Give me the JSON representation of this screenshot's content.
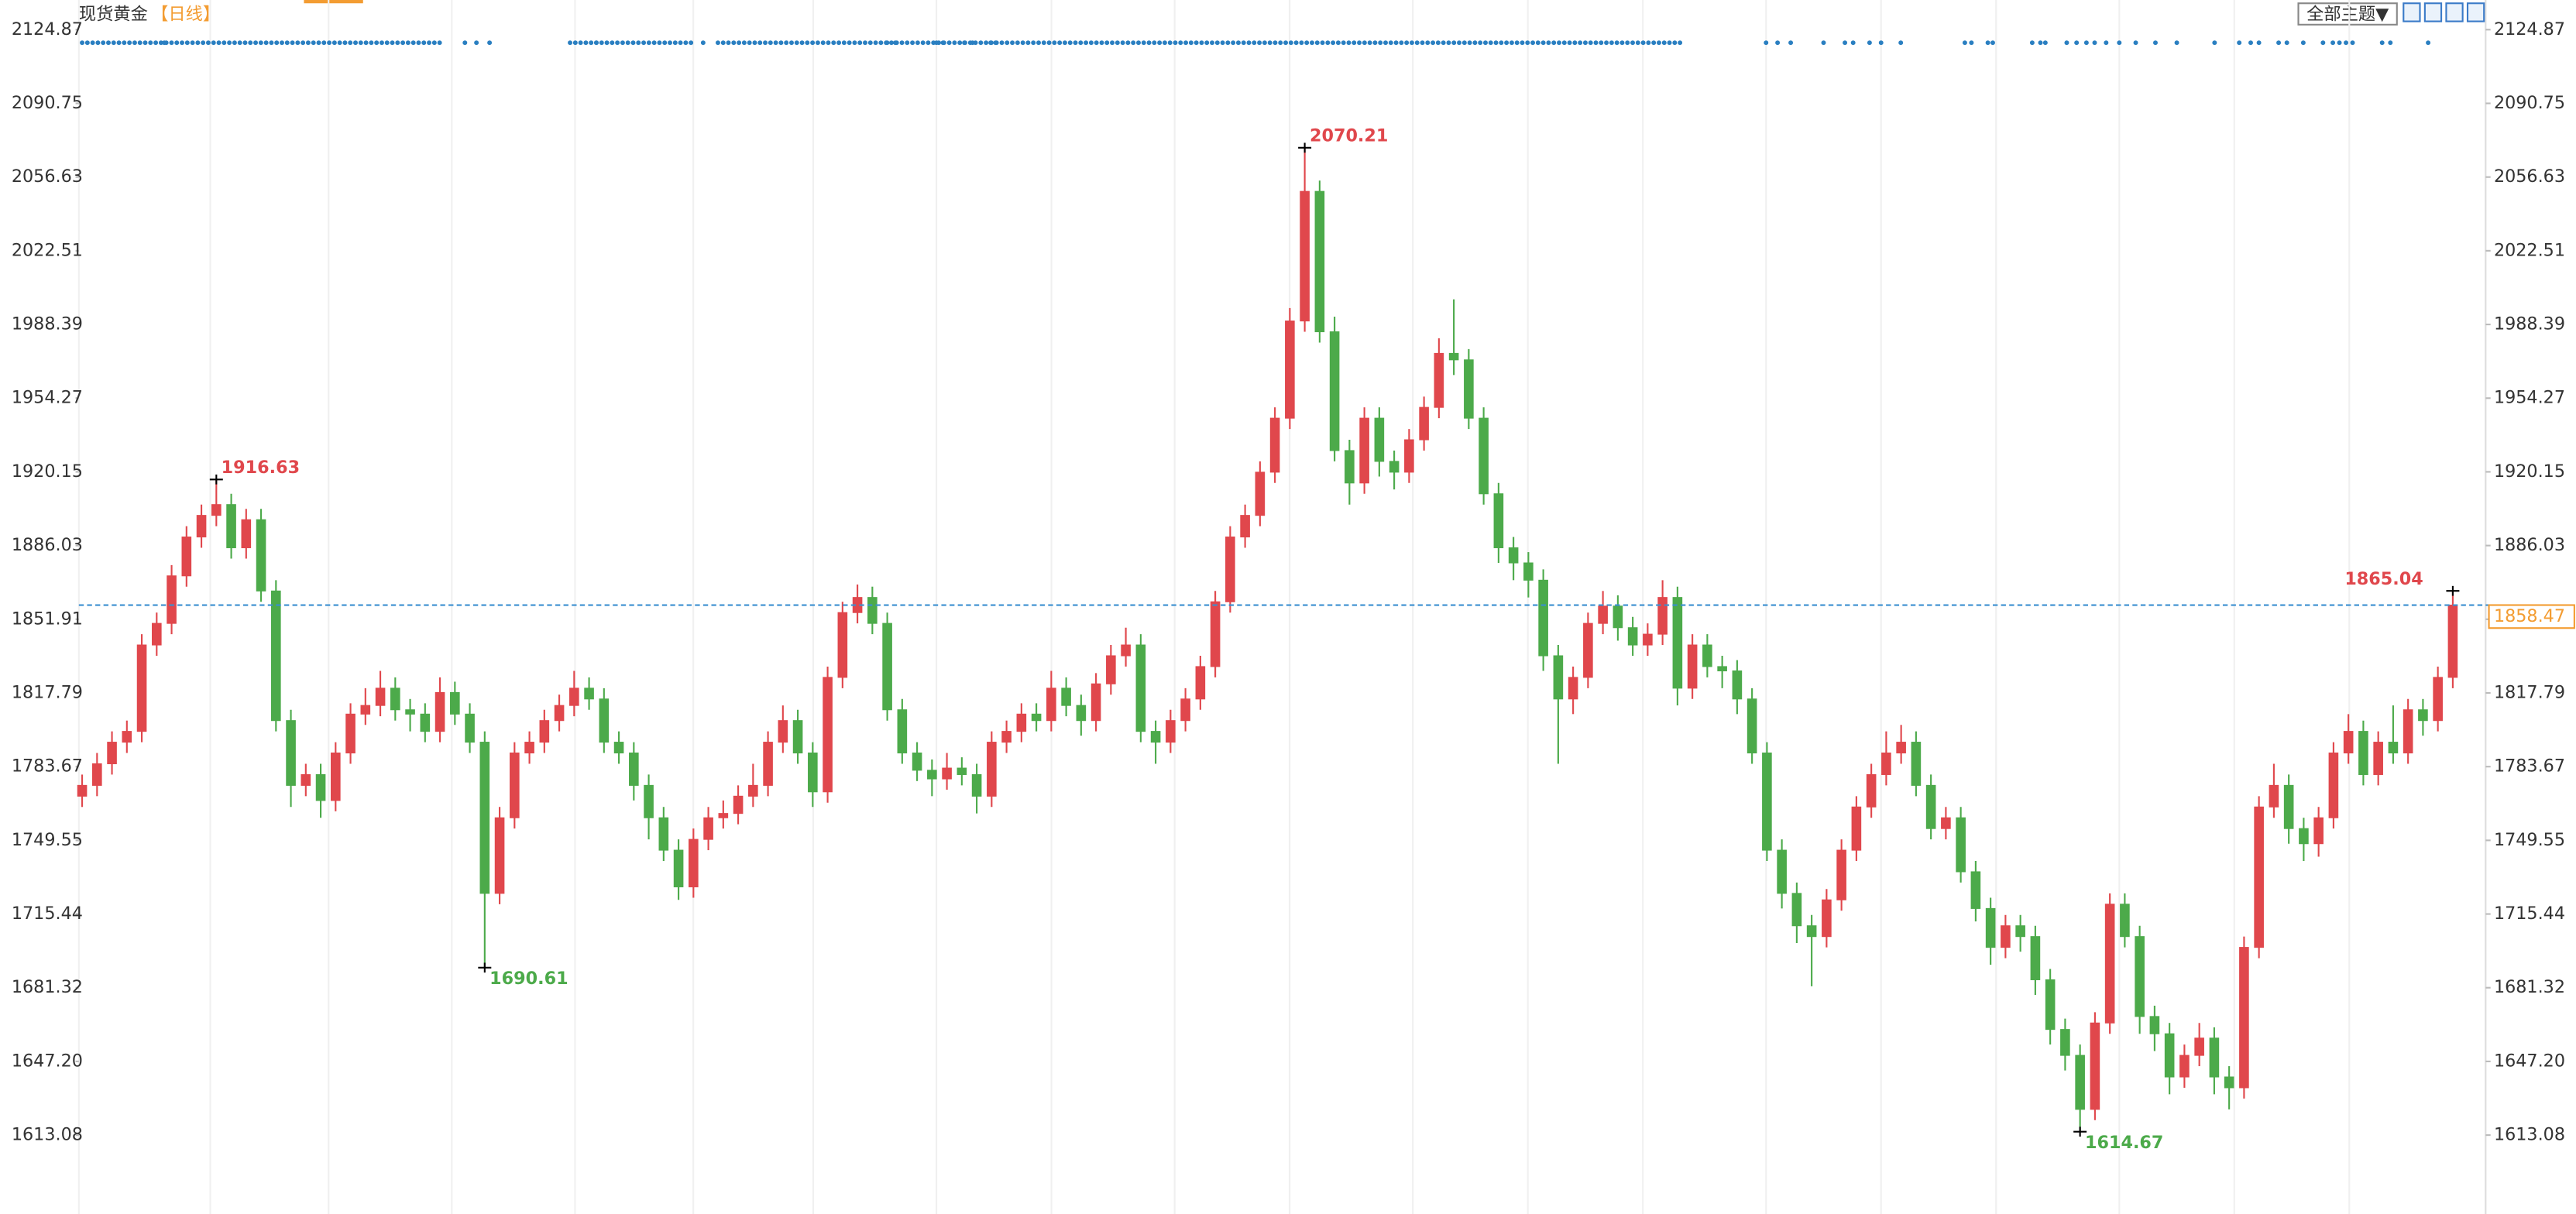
{
  "chart_data": {
    "type": "candlestick",
    "title": "现货黄金",
    "subtitle": "【日线】",
    "button": "全部主题▼",
    "up_color": "#e0474c",
    "down_color": "#4caa4a",
    "last_color": "#f39c32",
    "ylim": [
      1579.6,
      2134.8
    ],
    "yticks": [
      2124.87,
      2090.75,
      2056.63,
      2022.51,
      1988.39,
      1954.27,
      1920.15,
      1886.03,
      1851.91,
      1817.79,
      1783.67,
      1749.55,
      1715.44,
      1681.32,
      {
        "value": 1647.2,
        "label": "1647.20"
      },
      1613.08
    ],
    "open": [
      1770,
      1775,
      1785,
      1795,
      1800,
      1840,
      1850,
      1872,
      1890,
      1900,
      1905,
      1885,
      1898,
      1865,
      1805,
      1775,
      1780,
      1768,
      1790,
      1808,
      1812,
      1820,
      1810,
      1808,
      1800,
      1818,
      1808,
      1795,
      1725,
      1760,
      1790,
      1795,
      1805,
      1812,
      1820,
      1815,
      1795,
      1790,
      1775,
      1760,
      1745,
      1728,
      1750,
      1760,
      1762,
      1770,
      1775,
      1795,
      1805,
      1790,
      1772,
      1825,
      1855,
      1862,
      1850,
      1810,
      1790,
      1782,
      1778,
      1783,
      1780,
      1770,
      1795,
      1800,
      1808,
      1805,
      1820,
      1812,
      1805,
      1822,
      1835,
      1840,
      1800,
      1795,
      1805,
      1815,
      1830,
      1860,
      1890,
      1900,
      1920,
      1945,
      1990,
      2050,
      1985,
      1930,
      1915,
      1945,
      1925,
      1920,
      1935,
      1950,
      1975,
      1972,
      1945,
      1910,
      1885,
      1878,
      1870,
      1835,
      1815,
      1825,
      1850,
      1858,
      1848,
      1840,
      1845,
      1862,
      1820,
      1840,
      1830,
      1828,
      1815,
      1790,
      1745,
      1725,
      1710,
      1705,
      1722,
      1745,
      1765,
      1780,
      1790,
      1795,
      1775,
      1755,
      1760,
      1735,
      1718,
      1700,
      1710,
      1705,
      1685,
      1662,
      1650,
      1625,
      1665,
      1720,
      1705,
      1668,
      1660,
      1640,
      1650,
      1658,
      1640,
      1635,
      1700,
      1765,
      1775,
      1755,
      1748,
      1760,
      1790,
      1800,
      1780,
      1795,
      1790,
      1810,
      1805,
      1825
    ],
    "high": [
      1780,
      1790,
      1800,
      1805,
      1845,
      1855,
      1877,
      1895,
      1905,
      1916.63,
      1910,
      1903,
      1903,
      1870,
      1810,
      1785,
      1785,
      1795,
      1813,
      1820,
      1828,
      1825,
      1815,
      1813,
      1825,
      1823,
      1813,
      1800,
      1765,
      1795,
      1800,
      1810,
      1817,
      1828,
      1825,
      1820,
      1800,
      1795,
      1780,
      1765,
      1750,
      1755,
      1765,
      1768,
      1775,
      1785,
      1800,
      1812,
      1810,
      1795,
      1830,
      1860,
      1868,
      1867,
      1855,
      1815,
      1795,
      1787,
      1790,
      1788,
      1785,
      1800,
      1805,
      1813,
      1813,
      1828,
      1825,
      1817,
      1827,
      1840,
      1848,
      1845,
      1805,
      1810,
      1820,
      1835,
      1865,
      1895,
      1905,
      1925,
      1950,
      1996,
      2070.21,
      2055,
      1992,
      1935,
      1950,
      1950,
      1930,
      1940,
      1955,
      1982,
      2000,
      1977,
      1950,
      1915,
      1890,
      1883,
      1875,
      1840,
      1830,
      1855,
      1865,
      1863,
      1853,
      1850,
      1870,
      1867,
      1845,
      1845,
      1835,
      1833,
      1820,
      1795,
      1750,
      1730,
      1715,
      1727,
      1750,
      1770,
      1785,
      1800,
      1803,
      1800,
      1780,
      1765,
      1765,
      1740,
      1723,
      1715,
      1715,
      1710,
      1690,
      1667,
      1655,
      1670,
      1725,
      1725,
      1710,
      1673,
      1665,
      1655,
      1665,
      1663,
      1645,
      1705,
      1770,
      1785,
      1780,
      1760,
      1765,
      1795,
      1808,
      1805,
      1800,
      1812,
      1815,
      1815,
      1830,
      1865.04
    ],
    "low": [
      1765,
      1770,
      1780,
      1790,
      1795,
      1835,
      1845,
      1867,
      1885,
      1895,
      1880,
      1880,
      1860,
      1800,
      1765,
      1770,
      1760,
      1763,
      1785,
      1803,
      1807,
      1805,
      1800,
      1795,
      1795,
      1803,
      1790,
      1690.61,
      1720,
      1755,
      1785,
      1790,
      1800,
      1807,
      1810,
      1790,
      1785,
      1768,
      1750,
      1740,
      1722,
      1723,
      1745,
      1755,
      1757,
      1765,
      1770,
      1790,
      1785,
      1765,
      1767,
      1820,
      1850,
      1845,
      1805,
      1785,
      1777,
      1770,
      1773,
      1775,
      1762,
      1765,
      1790,
      1795,
      1800,
      1800,
      1807,
      1798,
      1800,
      1817,
      1830,
      1795,
      1785,
      1790,
      1800,
      1810,
      1825,
      1855,
      1885,
      1895,
      1915,
      1940,
      1985,
      1980,
      1925,
      1905,
      1910,
      1918,
      1912,
      1915,
      1930,
      1945,
      1965,
      1940,
      1905,
      1878,
      1870,
      1862,
      1828,
      1785,
      1808,
      1820,
      1845,
      1842,
      1835,
      1835,
      1840,
      1812,
      1815,
      1825,
      1820,
      1808,
      1785,
      1740,
      1718,
      1702,
      1682,
      1700,
      1717,
      1740,
      1760,
      1775,
      1785,
      1770,
      1750,
      1750,
      1730,
      1712,
      1692,
      1695,
      1698,
      1678,
      1655,
      1643,
      1614.67,
      1620,
      1660,
      1700,
      1660,
      1652,
      1632,
      1635,
      1645,
      1632,
      1625,
      1630,
      1695,
      1760,
      1748,
      1740,
      1742,
      1755,
      1785,
      1775,
      1775,
      1785,
      1785,
      1798,
      1800,
      1820
    ],
    "close": [
      1775,
      1785,
      1795,
      1800,
      1840,
      1850,
      1872,
      1890,
      1900,
      1905,
      1885,
      1898,
      1865,
      1805,
      1775,
      1780,
      1768,
      1790,
      1808,
      1812,
      1820,
      1810,
      1808,
      1800,
      1818,
      1808,
      1795,
      1725,
      1760,
      1790,
      1795,
      1805,
      1812,
      1820,
      1815,
      1795,
      1790,
      1775,
      1760,
      1745,
      1728,
      1750,
      1760,
      1762,
      1770,
      1775,
      1795,
      1805,
      1790,
      1772,
      1825,
      1855,
      1862,
      1850,
      1810,
      1790,
      1782,
      1778,
      1783,
      1780,
      1770,
      1795,
      1800,
      1808,
      1805,
      1820,
      1812,
      1805,
      1822,
      1835,
      1840,
      1800,
      1795,
      1805,
      1815,
      1830,
      1860,
      1890,
      1900,
      1920,
      1945,
      1990,
      2050,
      1985,
      1930,
      1915,
      1945,
      1925,
      1920,
      1935,
      1950,
      1975,
      1972,
      1945,
      1910,
      1885,
      1878,
      1870,
      1835,
      1815,
      1825,
      1850,
      1858,
      1848,
      1840,
      1845,
      1862,
      1820,
      1840,
      1830,
      1828,
      1815,
      1790,
      1745,
      1725,
      1710,
      1705,
      1722,
      1745,
      1765,
      1780,
      1790,
      1795,
      1775,
      1755,
      1760,
      1735,
      1718,
      1700,
      1710,
      1705,
      1685,
      1662,
      1650,
      1625,
      1665,
      1720,
      1705,
      1668,
      1660,
      1640,
      1650,
      1658,
      1640,
      1635,
      1700,
      1765,
      1775,
      1755,
      1748,
      1760,
      1790,
      1800,
      1780,
      1795,
      1790,
      1810,
      1805,
      1825,
      1858.47
    ]
  }
}
